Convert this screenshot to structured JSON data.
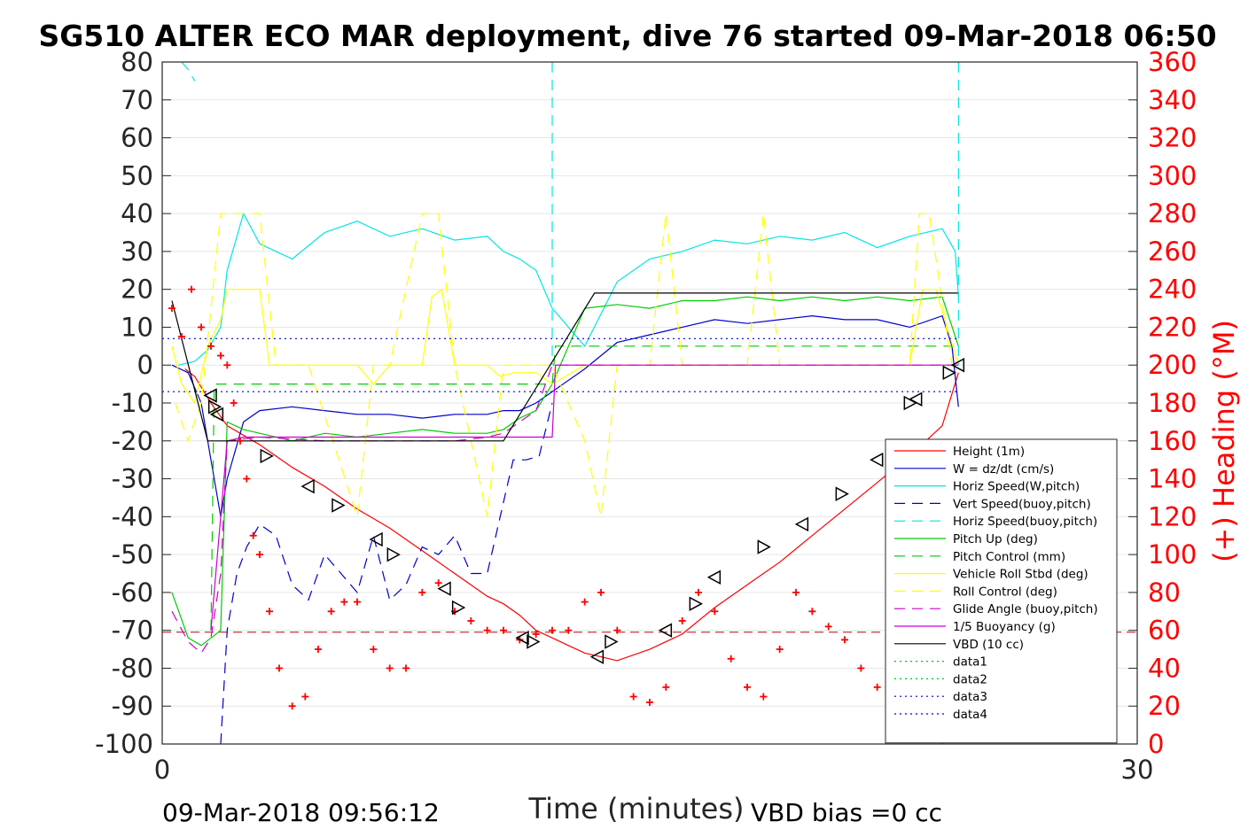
{
  "chart_data": {
    "type": "line",
    "title": "SG510 ALTER ECO MAR deployment, dive 76 started 09-Mar-2018 06:50",
    "xlabel": "Time (minutes)",
    "ylabel_right": "(+) Heading (°M)",
    "xlim": [
      0,
      30
    ],
    "ylim_left": [
      -100,
      80
    ],
    "ylim_right": [
      0,
      360
    ],
    "x_ticks": [
      "0",
      "30"
    ],
    "y_ticks_left": [
      "80",
      "70",
      "60",
      "50",
      "40",
      "30",
      "20",
      "10",
      "0",
      "-10",
      "-20",
      "-30",
      "-40",
      "-50",
      "-60",
      "-70",
      "-80",
      "-90",
      "-100"
    ],
    "y_ticks_right": [
      "360",
      "340",
      "320",
      "300",
      "280",
      "260",
      "240",
      "220",
      "200",
      "180",
      "160",
      "140",
      "120",
      "100",
      "80",
      "60",
      "40",
      "20",
      "0"
    ],
    "grid": true,
    "legend_position": "lower-right",
    "footer_left": "09-Mar-2018 09:56:12",
    "footer_right": "VBD bias =0 cc",
    "colors": {
      "height": "#ff0000",
      "w": "#0000cc",
      "horiz": "#00e5e5",
      "vert_buoy": "#0000cc",
      "horiz_buoy": "#00e5e5",
      "pitch": "#00cc00",
      "pitch_ctl": "#00cc00",
      "roll": "#ffff00",
      "roll_ctl": "#ffff00",
      "glide": "#cc00cc",
      "buoy": "#cc00cc",
      "vbd": "#000000",
      "data1": "#00cc00",
      "data2": "#00cc00",
      "data3": "#0000cc",
      "data4": "#0000cc",
      "heading": "#ff0000"
    },
    "series": [
      {
        "name": "Height (1m)",
        "style": "solid",
        "color_key": "height",
        "x": [
          0.7,
          1.0,
          1.5,
          2.0,
          3.0,
          4.0,
          5.0,
          6.0,
          7.0,
          8.0,
          9.0,
          10.0,
          10.5,
          11.0,
          11.5,
          12.0,
          12.5,
          13.0,
          13.5,
          14.0,
          15.0,
          16.0,
          17.0,
          18.0,
          19.0,
          20.0,
          21.0,
          22.0,
          23.0,
          24.0,
          24.5
        ],
        "y": [
          -1,
          -3,
          -10,
          -16,
          -21,
          -27,
          -32,
          -38,
          -43,
          -49,
          -55,
          -61,
          -63,
          -66,
          -70,
          -72,
          -74,
          -76,
          -77,
          -78,
          -75,
          -71,
          -64,
          -58,
          -52,
          -45,
          -38,
          -31,
          -24,
          -16,
          -2
        ]
      },
      {
        "name": "W = dz/dt (cm/s)",
        "style": "solid",
        "color_key": "w",
        "x": [
          0.3,
          0.8,
          1.2,
          1.5,
          1.8,
          2.0,
          2.5,
          3.0,
          4.0,
          5.0,
          6.0,
          7.0,
          8.0,
          9.0,
          10.0,
          10.5,
          11.0,
          11.5,
          12.0,
          13.0,
          14.0,
          15.0,
          16.0,
          17.0,
          18.0,
          19.0,
          20.0,
          21.0,
          22.0,
          23.0,
          24.0,
          24.3,
          24.5
        ],
        "y": [
          0,
          -2,
          -10,
          -25,
          -40,
          -30,
          -15,
          -12,
          -11,
          -12,
          -13,
          -13,
          -14,
          -13,
          -13,
          -12,
          -12,
          -10,
          -7,
          -1,
          6,
          8,
          10,
          12,
          11,
          12,
          13,
          12,
          12,
          10,
          13,
          5,
          -11
        ]
      },
      {
        "name": "Horiz Speed(W,pitch)",
        "style": "solid",
        "color_key": "horiz",
        "x": [
          0.5,
          1.0,
          1.4,
          1.8,
          2.0,
          2.5,
          3.0,
          4.0,
          5.0,
          6.0,
          7.0,
          8.0,
          9.0,
          10.0,
          10.5,
          11.0,
          11.5,
          12.0,
          13.0,
          14.0,
          15.0,
          16.0,
          17.0,
          18.0,
          19.0,
          20.0,
          21.0,
          22.0,
          23.0,
          24.0,
          24.4,
          24.5
        ],
        "y": [
          0,
          1,
          4,
          10,
          25,
          40,
          32,
          28,
          35,
          38,
          34,
          36,
          33,
          34,
          30,
          28,
          25,
          15,
          5,
          22,
          28,
          30,
          33,
          32,
          34,
          33,
          35,
          31,
          34,
          36,
          30,
          18
        ]
      },
      {
        "name": "Vert Speed(buoy,pitch)",
        "style": "dashed",
        "color_key": "vert_buoy",
        "x": [
          1.8,
          2.0,
          2.3,
          2.6,
          3.0,
          3.5,
          4.0,
          4.5,
          5.0,
          5.5,
          6.0,
          6.5,
          7.0,
          7.5,
          8.0,
          8.5,
          9.0,
          9.5,
          10.0,
          10.4,
          10.8,
          11.2,
          11.6,
          12.0
        ],
        "y": [
          -100,
          -70,
          -55,
          -48,
          -42,
          -45,
          -58,
          -62,
          -50,
          -55,
          -60,
          -45,
          -62,
          -58,
          -48,
          -50,
          -45,
          -55,
          -55,
          -40,
          -25,
          -25,
          -24,
          -10
        ]
      },
      {
        "name": "Horiz Speed(buoy,pitch)",
        "style": "dashed",
        "color_key": "horiz_buoy",
        "x": [
          0.6,
          0.8,
          1.0
        ],
        "y": [
          80,
          78,
          75
        ]
      },
      {
        "name": "Pitch Up (deg)",
        "style": "solid",
        "color_key": "pitch",
        "x": [
          0.3,
          0.8,
          1.2,
          1.8,
          2.0,
          2.5,
          3.0,
          4.0,
          5.0,
          6.0,
          7.0,
          8.0,
          9.0,
          10.0,
          10.5,
          11.0,
          11.5,
          12.0,
          13.0,
          14.0,
          15.0,
          16.0,
          17.0,
          18.0,
          19.0,
          20.0,
          21.0,
          22.0,
          23.0,
          24.0,
          24.5
        ],
        "y": [
          -60,
          -72,
          -74,
          -70,
          -15,
          -17,
          -18,
          -20,
          -18,
          -19,
          -18,
          -17,
          -18,
          -18,
          -17,
          -14,
          -12,
          -5,
          15,
          16,
          15,
          17,
          17,
          18,
          17,
          18,
          17,
          18,
          17,
          18,
          5
        ]
      },
      {
        "name": "Pitch Control (mm)",
        "style": "dashed",
        "color_key": "pitch_ctl",
        "x": [
          1.5,
          1.6,
          12.0,
          12.1,
          24.5
        ],
        "y": [
          -70,
          -5,
          -5,
          5,
          5
        ]
      },
      {
        "name": "Vehicle Roll Stbd (deg)",
        "style": "solid",
        "color_key": "roll",
        "x": [
          0.3,
          0.6,
          1.0,
          1.4,
          1.8,
          2.0,
          3.0,
          3.3,
          3.6,
          4.0,
          6.0,
          6.5,
          7.0,
          8.0,
          8.3,
          8.6,
          9.0,
          10.0,
          10.4,
          10.8,
          11.5,
          12.0,
          13.0,
          14.0,
          14.5,
          15.0,
          16.0,
          17.0,
          18.0,
          19.0,
          20.0,
          21.0,
          22.0,
          23.0,
          23.4,
          23.8,
          24.5
        ],
        "y": [
          5,
          -5,
          -10,
          5,
          12,
          20,
          20,
          0,
          0,
          0,
          0,
          -5,
          0,
          0,
          18,
          20,
          0,
          0,
          -3,
          -2,
          -2,
          -5,
          0,
          0,
          0,
          0,
          0,
          0,
          0,
          0,
          0,
          0,
          0,
          0,
          20,
          20,
          0
        ]
      },
      {
        "name": "Roll Control (deg)",
        "style": "dashed",
        "color_key": "roll_ctl",
        "x": [
          0.4,
          0.8,
          1.2,
          1.8,
          2.0,
          3.0,
          3.5,
          4.5,
          6.0,
          6.5,
          7.0,
          8.0,
          8.5,
          9.0,
          10.0,
          10.5,
          11.0,
          12.0,
          13.0,
          13.5,
          14.0,
          15.0,
          15.5,
          16.0,
          18.0,
          18.5,
          19.0,
          23.0,
          23.3,
          23.6,
          24.3
        ],
        "y": [
          -10,
          -20,
          -10,
          40,
          40,
          40,
          0,
          0,
          -40,
          0,
          0,
          40,
          40,
          0,
          -40,
          0,
          0,
          0,
          -20,
          -40,
          0,
          0,
          40,
          0,
          0,
          40,
          0,
          0,
          40,
          40,
          0
        ]
      },
      {
        "name": "Glide Angle (buoy,pitch)",
        "style": "dashed",
        "color_key": "glide",
        "x": [
          0.3,
          0.8,
          1.2,
          1.5,
          1.8,
          2.0,
          3.0,
          5.0,
          7.0,
          9.0,
          10.0,
          10.5,
          11.0,
          11.5,
          12.0,
          24.5
        ],
        "y": [
          -65,
          -73,
          -76,
          -72,
          -55,
          -20,
          -19,
          -20,
          -20,
          -20,
          -19,
          -18,
          -15,
          -12,
          0,
          0
        ]
      },
      {
        "name": "1/5 Buoyancy (g)",
        "style": "solid",
        "color_key": "buoy",
        "x": [
          1.5,
          2.0,
          2.5,
          12.0,
          12.1,
          24.5
        ],
        "y": [
          -70,
          -20,
          -19,
          -19,
          0,
          0
        ]
      },
      {
        "name": "VBD (10 cc)",
        "style": "solid",
        "color_key": "vbd",
        "x": [
          0.3,
          1.4,
          10.5,
          13.3,
          24.5
        ],
        "y": [
          17,
          -20,
          -20,
          19,
          19
        ]
      },
      {
        "name": "data1",
        "style": "dotted",
        "color_key": "data1",
        "x": [],
        "y": []
      },
      {
        "name": "data2",
        "style": "dotted",
        "color_key": "data2",
        "x": [],
        "y": []
      },
      {
        "name": "data3",
        "style": "dotted",
        "color_key": "data3",
        "x": [
          0,
          24.5
        ],
        "y": [
          7,
          7
        ]
      },
      {
        "name": "data4",
        "style": "dotted",
        "color_key": "data4",
        "x": [
          0,
          24.5
        ],
        "y": [
          -7,
          -7
        ]
      }
    ],
    "heading_series": {
      "axis": "right",
      "x": [
        0.3,
        0.6,
        0.9,
        1.2,
        1.5,
        1.8,
        2.0,
        2.2,
        2.4,
        2.6,
        2.8,
        3.0,
        3.3,
        3.6,
        4.0,
        4.4,
        4.8,
        5.2,
        5.6,
        6.0,
        6.5,
        7.0,
        7.5,
        8.0,
        8.5,
        9.0,
        9.5,
        10.0,
        10.5,
        11.0,
        11.5,
        12.0,
        12.5,
        13.0,
        13.5,
        14.0,
        14.5,
        15.0,
        15.5,
        16.0,
        16.5,
        17.0,
        17.5,
        18.0,
        18.5,
        19.0,
        19.5,
        20.0,
        20.5,
        21.0,
        21.5,
        22.0,
        22.5,
        23.0,
        23.5,
        24.0
      ],
      "y": [
        230,
        215,
        240,
        220,
        210,
        205,
        200,
        180,
        160,
        140,
        110,
        100,
        70,
        40,
        20,
        25,
        50,
        70,
        75,
        75,
        50,
        40,
        40,
        80,
        85,
        70,
        65,
        60,
        60,
        55,
        58,
        60,
        60,
        75,
        80,
        60,
        25,
        22,
        30,
        65,
        80,
        70,
        45,
        30,
        25,
        50,
        80,
        70,
        62,
        55,
        40,
        30,
        20,
        10,
        5,
        2
      ]
    },
    "turn_markers": {
      "x": [
        1.5,
        1.6,
        1.7,
        3.2,
        4.5,
        5.4,
        6.6,
        7.1,
        8.7,
        9.1,
        11.1,
        11.4,
        13.4,
        13.8,
        15.5,
        16.4,
        17.0,
        18.5,
        19.7,
        20.9,
        22.0,
        23.0,
        23.2,
        24.2,
        24.5
      ],
      "y": [
        -8,
        -11,
        -13,
        -24,
        -32,
        -37,
        -46,
        -50,
        -59,
        -64,
        -72,
        -73,
        -77,
        -73,
        -70,
        -63,
        -56,
        -48,
        -42,
        -34,
        -25,
        -10,
        -9,
        -2,
        0
      ]
    },
    "ref_line": {
      "y": -70.5,
      "color": "#bf0000"
    }
  }
}
